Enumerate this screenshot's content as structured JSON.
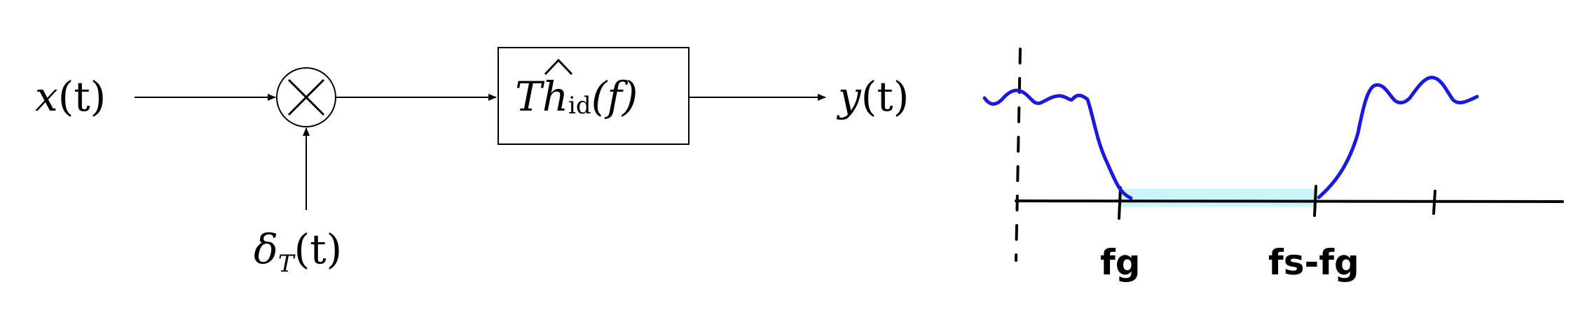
{
  "block_diagram": {
    "input_x": "x",
    "input_t": "(t)",
    "impulse_delta": "δ",
    "impulse_sub": "T",
    "impulse_t": "(t)",
    "filter_T": "T",
    "filter_h": "h",
    "filter_hat": "^",
    "filter_sub": "id",
    "filter_f": "(f)",
    "output_y": "y",
    "output_t": "(t)",
    "multiplier_symbol": "×"
  },
  "spectrum_sketch": {
    "label_fg": "fg",
    "label_fs_minus_fg": "fs-fg",
    "colors": {
      "spectrum": "#1a1adf",
      "band_highlight": "#bff3f7",
      "axis": "#000000"
    }
  }
}
